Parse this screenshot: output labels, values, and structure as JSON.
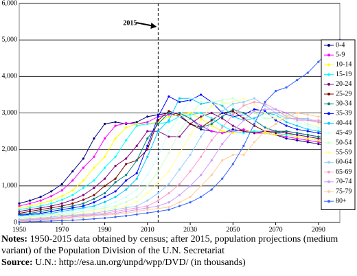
{
  "chart_data": {
    "type": "line",
    "x": [
      1950,
      1955,
      1960,
      1965,
      1970,
      1975,
      1980,
      1985,
      1990,
      1995,
      2000,
      2005,
      2010,
      2015,
      2020,
      2025,
      2030,
      2035,
      2040,
      2045,
      2050,
      2055,
      2060,
      2065,
      2070,
      2075,
      2080,
      2085,
      2090,
      2095,
      2100
    ],
    "xlim": [
      1950,
      2100
    ],
    "xticks": [
      1950,
      1970,
      1990,
      2010,
      2030,
      2050,
      2070,
      2090
    ],
    "ylim": [
      0,
      6000
    ],
    "yticks": [
      0,
      {
        "value": 1000,
        "label": "1,000"
      },
      {
        "value": 2000,
        "label": "2,000"
      },
      {
        "value": 3000,
        "label": "3,000"
      },
      {
        "value": 4000,
        "label": "4,000"
      },
      {
        "value": 5000,
        "label": "5,000"
      },
      {
        "value": 6000,
        "label": "6,000"
      }
    ],
    "grid": true,
    "legend": "right",
    "annotation": {
      "text": "2015",
      "x": 2015
    },
    "series": [
      {
        "name": "0-4",
        "color": "#000080",
        "values": [
          520,
          600,
          700,
          850,
          1050,
          1400,
          1750,
          2300,
          2700,
          2750,
          2700,
          2750,
          2900,
          2950,
          3000,
          2900,
          2700,
          2550,
          2500,
          2450,
          2550,
          2500,
          2450,
          2450,
          2400,
          2300,
          2250,
          2200,
          2150,
          2100,
          2050
        ]
      },
      {
        "name": "5-9",
        "color": "#ff00ff",
        "values": [
          450,
          520,
          600,
          720,
          880,
          1150,
          1500,
          1800,
          2300,
          2650,
          2720,
          2700,
          2750,
          2900,
          2950,
          3000,
          2850,
          2650,
          2500,
          2450,
          2500,
          2550,
          2450,
          2450,
          2400,
          2350,
          2300,
          2250,
          2200,
          2150,
          2100
        ]
      },
      {
        "name": "10-14",
        "color": "#ffff00",
        "values": [
          400,
          450,
          520,
          600,
          720,
          880,
          1150,
          1500,
          1800,
          2300,
          2600,
          2700,
          2700,
          2750,
          2900,
          2950,
          3000,
          2850,
          2650,
          2500,
          2450,
          2500,
          2500,
          2450,
          2400,
          2400,
          2350,
          2300,
          2250,
          2200,
          2150
        ]
      },
      {
        "name": "15-19",
        "color": "#00ffff",
        "values": [
          350,
          400,
          450,
          520,
          620,
          750,
          950,
          1150,
          1500,
          1800,
          2250,
          2650,
          2700,
          2700,
          2750,
          2900,
          2950,
          3000,
          2850,
          2650,
          2500,
          2450,
          2500,
          2500,
          2450,
          2400,
          2400,
          2350,
          2300,
          2250,
          2200
        ]
      },
      {
        "name": "20-24",
        "color": "#800080",
        "values": [
          300,
          350,
          400,
          450,
          520,
          620,
          750,
          950,
          1200,
          1550,
          1750,
          2100,
          2500,
          2500,
          2350,
          2350,
          2700,
          2900,
          3000,
          2850,
          2650,
          2500,
          2450,
          2500,
          2500,
          2450,
          2400,
          2350,
          2300,
          2250,
          2200
        ]
      },
      {
        "name": "25-29",
        "color": "#800000",
        "values": [
          250,
          300,
          350,
          400,
          450,
          520,
          620,
          750,
          1000,
          1200,
          1600,
          1700,
          2000,
          2800,
          3050,
          2950,
          2700,
          2600,
          2800,
          3000,
          3050,
          2850,
          2650,
          2500,
          2450,
          2500,
          2450,
          2400,
          2350,
          2300,
          2300
        ]
      },
      {
        "name": "30-34",
        "color": "#008080",
        "values": [
          220,
          250,
          300,
          350,
          400,
          450,
          520,
          650,
          800,
          1100,
          1300,
          1700,
          2300,
          2700,
          3000,
          3000,
          2850,
          2600,
          2700,
          2900,
          3100,
          3000,
          2800,
          2600,
          2500,
          2500,
          2450,
          2400,
          2350,
          2300,
          2250
        ]
      },
      {
        "name": "35-39",
        "color": "#0000ff",
        "values": [
          200,
          220,
          250,
          300,
          350,
          400,
          450,
          550,
          700,
          850,
          1150,
          1350,
          2100,
          2900,
          3450,
          3300,
          3350,
          3500,
          3300,
          3000,
          2900,
          2950,
          3100,
          3050,
          2800,
          2650,
          2550,
          2500,
          2450,
          2400,
          2350
        ]
      },
      {
        "name": "40-44",
        "color": "#00ccff",
        "values": [
          180,
          200,
          220,
          250,
          300,
          350,
          400,
          450,
          560,
          700,
          900,
          1200,
          1800,
          2500,
          2800,
          3400,
          3400,
          3250,
          3300,
          3200,
          2900,
          2800,
          2850,
          3000,
          2950,
          2750,
          2650,
          2550,
          2500,
          2450,
          2400
        ]
      },
      {
        "name": "45-49",
        "color": "#ccffff",
        "values": [
          150,
          180,
          200,
          220,
          250,
          300,
          350,
          400,
          450,
          560,
          700,
          900,
          1300,
          1800,
          2500,
          2900,
          3400,
          3400,
          3300,
          3300,
          3200,
          2950,
          2800,
          2850,
          2950,
          2900,
          2750,
          2650,
          2550,
          2500,
          2450
        ]
      },
      {
        "name": "50-54",
        "color": "#ccffcc",
        "values": [
          120,
          150,
          180,
          200,
          220,
          250,
          300,
          350,
          400,
          450,
          560,
          700,
          1000,
          1400,
          1900,
          2500,
          2900,
          3300,
          3300,
          3350,
          3400,
          3250,
          3000,
          2850,
          2850,
          2950,
          2850,
          2700,
          2600,
          2500,
          2450
        ]
      },
      {
        "name": "55-59",
        "color": "#ffff99",
        "values": [
          100,
          120,
          150,
          180,
          200,
          220,
          250,
          300,
          350,
          400,
          450,
          560,
          800,
          1100,
          1400,
          1900,
          2400,
          2800,
          3200,
          3250,
          3300,
          3400,
          3250,
          3000,
          2850,
          2850,
          2900,
          2800,
          2700,
          2600,
          2500
        ]
      },
      {
        "name": "60-64",
        "color": "#99ccff",
        "values": [
          80,
          100,
          120,
          150,
          180,
          200,
          220,
          250,
          300,
          350,
          400,
          450,
          600,
          800,
          1050,
          1450,
          1850,
          2350,
          2750,
          3050,
          3250,
          3300,
          3400,
          3200,
          3000,
          2850,
          2850,
          2850,
          2750,
          2650,
          2550
        ]
      },
      {
        "name": "65-69",
        "color": "#ff99cc",
        "values": [
          60,
          80,
          100,
          120,
          150,
          180,
          200,
          220,
          250,
          300,
          350,
          400,
          450,
          600,
          800,
          1050,
          1400,
          1800,
          2250,
          2600,
          2950,
          3200,
          3300,
          3250,
          3100,
          2900,
          2800,
          2800,
          2800,
          2700,
          2600
        ]
      },
      {
        "name": "70-74",
        "color": "#cc99ff",
        "values": [
          40,
          60,
          80,
          100,
          120,
          150,
          180,
          200,
          220,
          250,
          300,
          350,
          400,
          450,
          550,
          750,
          1000,
          1300,
          1700,
          2150,
          2500,
          2800,
          3050,
          3100,
          3100,
          3000,
          2850,
          2800,
          2750,
          2700,
          2600
        ]
      },
      {
        "name": "75-79",
        "color": "#ffcc99",
        "values": [
          30,
          40,
          60,
          80,
          100,
          120,
          150,
          180,
          200,
          220,
          250,
          300,
          350,
          380,
          420,
          550,
          700,
          1000,
          1300,
          1700,
          1850,
          1850,
          2200,
          2500,
          2700,
          2900,
          3000,
          2950,
          2900,
          2850,
          2750
        ]
      },
      {
        "name": "80+",
        "color": "#3366ff",
        "values": [
          10,
          20,
          30,
          40,
          50,
          60,
          80,
          100,
          120,
          150,
          180,
          220,
          260,
          300,
          350,
          450,
          550,
          700,
          900,
          1200,
          1600,
          2100,
          2700,
          3300,
          3600,
          3700,
          3900,
          4100,
          4400,
          4700,
          5000
        ]
      }
    ],
    "notes": {
      "label": "Notes:",
      "text": "1950-2015 data obtained by census; after 2015, population projections (medium variant) of the Population Division of the U.N. Secretariat"
    },
    "source": {
      "label": "Source:",
      "text": "U.N.: http://esa.un.org/unpd/wpp/DVD/ (in thousands)"
    }
  }
}
